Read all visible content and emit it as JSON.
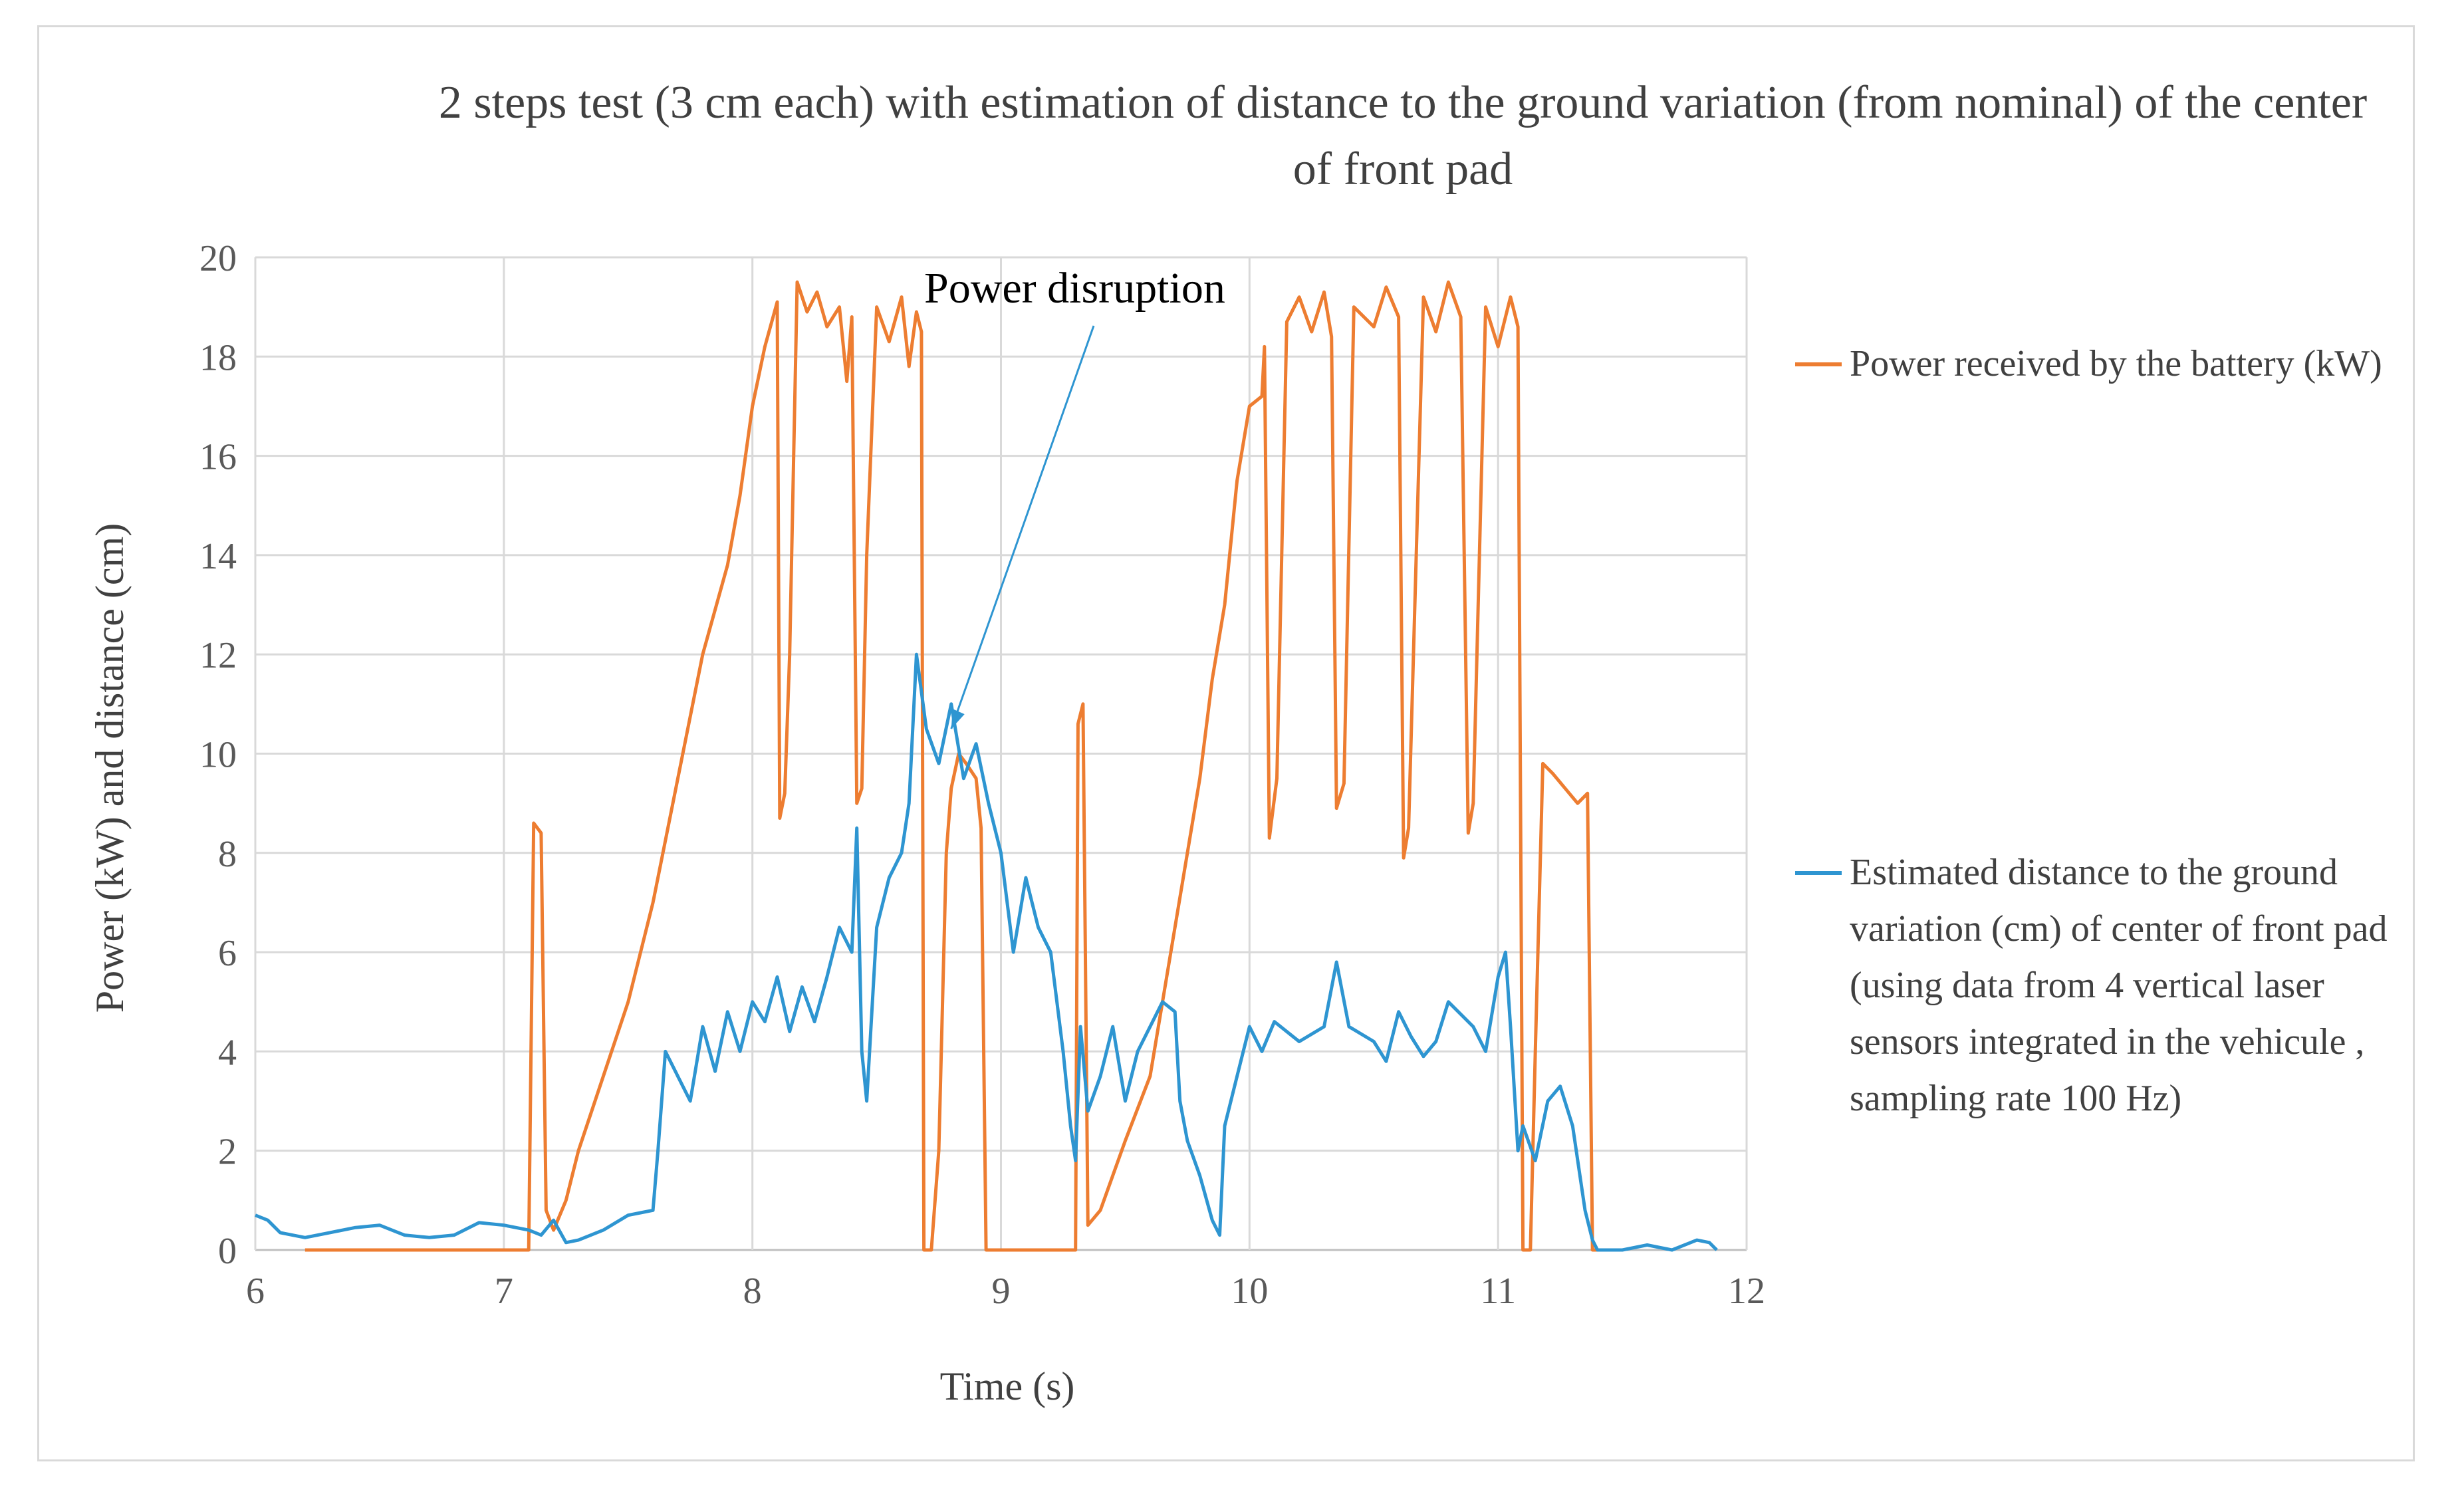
{
  "chart_data": {
    "type": "line",
    "title": "2 steps  test (3 cm each)  with estimation of distance to  the ground variation  (from nominal) of  the center of front pad",
    "xlabel": "Time (s)",
    "ylabel": "Power (kW) and distance  (cm)",
    "xlim": [
      6,
      12
    ],
    "ylim": [
      0,
      20
    ],
    "x_ticks": [
      "6",
      "7",
      "8",
      "9",
      "10",
      "11",
      "12"
    ],
    "y_ticks": [
      "0",
      "2",
      "4",
      "6",
      "8",
      "10",
      "12",
      "14",
      "16",
      "18",
      "20"
    ],
    "grid": true,
    "legend_position": "right",
    "annotation": {
      "text": "Power disruption",
      "x": 8.8,
      "y": 10.5
    },
    "series": [
      {
        "name": "Power received by the battery (kW)",
        "color": "#ED7D31",
        "points": [
          [
            6.2,
            0
          ],
          [
            7.1,
            0
          ],
          [
            7.12,
            8.6
          ],
          [
            7.15,
            8.4
          ],
          [
            7.17,
            0.8
          ],
          [
            7.2,
            0.4
          ],
          [
            7.25,
            1.0
          ],
          [
            7.3,
            2.0
          ],
          [
            7.4,
            3.5
          ],
          [
            7.5,
            5.0
          ],
          [
            7.6,
            7.0
          ],
          [
            7.7,
            9.5
          ],
          [
            7.8,
            12.0
          ],
          [
            7.9,
            13.8
          ],
          [
            7.95,
            15.2
          ],
          [
            8.0,
            17.0
          ],
          [
            8.05,
            18.2
          ],
          [
            8.1,
            19.1
          ],
          [
            8.11,
            8.7
          ],
          [
            8.13,
            9.2
          ],
          [
            8.15,
            12
          ],
          [
            8.18,
            19.5
          ],
          [
            8.22,
            18.9
          ],
          [
            8.26,
            19.3
          ],
          [
            8.3,
            18.6
          ],
          [
            8.35,
            19.0
          ],
          [
            8.38,
            17.5
          ],
          [
            8.4,
            18.8
          ],
          [
            8.42,
            9.0
          ],
          [
            8.44,
            9.3
          ],
          [
            8.46,
            14
          ],
          [
            8.5,
            19.0
          ],
          [
            8.55,
            18.3
          ],
          [
            8.6,
            19.2
          ],
          [
            8.63,
            17.8
          ],
          [
            8.66,
            18.9
          ],
          [
            8.68,
            18.5
          ],
          [
            8.69,
            0
          ],
          [
            8.72,
            0
          ],
          [
            8.75,
            2
          ],
          [
            8.78,
            8
          ],
          [
            8.8,
            9.3
          ],
          [
            8.83,
            10.0
          ],
          [
            8.86,
            9.8
          ],
          [
            8.9,
            9.5
          ],
          [
            8.92,
            8.5
          ],
          [
            8.94,
            0
          ],
          [
            9.05,
            0
          ],
          [
            9.3,
            0
          ],
          [
            9.31,
            10.6
          ],
          [
            9.33,
            11.0
          ],
          [
            9.35,
            0.5
          ],
          [
            9.4,
            0.8
          ],
          [
            9.5,
            2.2
          ],
          [
            9.6,
            3.5
          ],
          [
            9.7,
            6.5
          ],
          [
            9.8,
            9.5
          ],
          [
            9.85,
            11.5
          ],
          [
            9.9,
            13.0
          ],
          [
            9.95,
            15.5
          ],
          [
            10.0,
            17.0
          ],
          [
            10.05,
            17.2
          ],
          [
            10.06,
            18.2
          ],
          [
            10.08,
            8.3
          ],
          [
            10.11,
            9.5
          ],
          [
            10.15,
            18.7
          ],
          [
            10.2,
            19.2
          ],
          [
            10.25,
            18.5
          ],
          [
            10.3,
            19.3
          ],
          [
            10.33,
            18.4
          ],
          [
            10.35,
            8.9
          ],
          [
            10.38,
            9.4
          ],
          [
            10.42,
            19.0
          ],
          [
            10.5,
            18.6
          ],
          [
            10.55,
            19.4
          ],
          [
            10.6,
            18.8
          ],
          [
            10.62,
            7.9
          ],
          [
            10.64,
            8.5
          ],
          [
            10.7,
            19.2
          ],
          [
            10.75,
            18.5
          ],
          [
            10.8,
            19.5
          ],
          [
            10.85,
            18.8
          ],
          [
            10.88,
            8.4
          ],
          [
            10.9,
            9.0
          ],
          [
            10.95,
            19.0
          ],
          [
            11.0,
            18.2
          ],
          [
            11.05,
            19.2
          ],
          [
            11.08,
            18.6
          ],
          [
            11.1,
            0
          ],
          [
            11.13,
            0
          ],
          [
            11.15,
            4
          ],
          [
            11.18,
            9.8
          ],
          [
            11.22,
            9.6
          ],
          [
            11.27,
            9.3
          ],
          [
            11.32,
            9.0
          ],
          [
            11.36,
            9.2
          ],
          [
            11.38,
            0
          ],
          [
            11.45,
            0
          ]
        ]
      },
      {
        "name": "Estimated  distance to the ground variation (cm) of center of front pad (using data from 4 vertical laser sensors integrated in the vehicule , sampling rate 100 Hz)",
        "color": "#2E95D1",
        "points": [
          [
            6.0,
            0.7
          ],
          [
            6.05,
            0.6
          ],
          [
            6.1,
            0.35
          ],
          [
            6.2,
            0.25
          ],
          [
            6.3,
            0.35
          ],
          [
            6.4,
            0.45
          ],
          [
            6.5,
            0.5
          ],
          [
            6.6,
            0.3
          ],
          [
            6.7,
            0.25
          ],
          [
            6.8,
            0.3
          ],
          [
            6.9,
            0.55
          ],
          [
            7.0,
            0.5
          ],
          [
            7.1,
            0.4
          ],
          [
            7.15,
            0.3
          ],
          [
            7.2,
            0.6
          ],
          [
            7.25,
            0.15
          ],
          [
            7.3,
            0.2
          ],
          [
            7.4,
            0.4
          ],
          [
            7.5,
            0.7
          ],
          [
            7.55,
            0.75
          ],
          [
            7.6,
            0.8
          ],
          [
            7.62,
            2.0
          ],
          [
            7.65,
            4.0
          ],
          [
            7.7,
            3.5
          ],
          [
            7.75,
            3.0
          ],
          [
            7.8,
            4.5
          ],
          [
            7.85,
            3.6
          ],
          [
            7.9,
            4.8
          ],
          [
            7.95,
            4.0
          ],
          [
            8.0,
            5.0
          ],
          [
            8.05,
            4.6
          ],
          [
            8.1,
            5.5
          ],
          [
            8.15,
            4.4
          ],
          [
            8.2,
            5.3
          ],
          [
            8.25,
            4.6
          ],
          [
            8.3,
            5.5
          ],
          [
            8.35,
            6.5
          ],
          [
            8.4,
            6.0
          ],
          [
            8.42,
            8.5
          ],
          [
            8.44,
            4.0
          ],
          [
            8.46,
            3.0
          ],
          [
            8.5,
            6.5
          ],
          [
            8.55,
            7.5
          ],
          [
            8.6,
            8.0
          ],
          [
            8.63,
            9.0
          ],
          [
            8.66,
            12.0
          ],
          [
            8.7,
            10.5
          ],
          [
            8.75,
            9.8
          ],
          [
            8.8,
            11.0
          ],
          [
            8.85,
            9.5
          ],
          [
            8.9,
            10.2
          ],
          [
            8.95,
            9.0
          ],
          [
            9.0,
            8.0
          ],
          [
            9.05,
            6.0
          ],
          [
            9.1,
            7.5
          ],
          [
            9.15,
            6.5
          ],
          [
            9.2,
            6.0
          ],
          [
            9.25,
            4.0
          ],
          [
            9.28,
            2.5
          ],
          [
            9.3,
            1.8
          ],
          [
            9.32,
            4.5
          ],
          [
            9.35,
            2.8
          ],
          [
            9.4,
            3.5
          ],
          [
            9.45,
            4.5
          ],
          [
            9.5,
            3.0
          ],
          [
            9.55,
            4.0
          ],
          [
            9.6,
            4.5
          ],
          [
            9.65,
            5.0
          ],
          [
            9.7,
            4.8
          ],
          [
            9.72,
            3.0
          ],
          [
            9.75,
            2.2
          ],
          [
            9.8,
            1.5
          ],
          [
            9.85,
            0.6
          ],
          [
            9.88,
            0.3
          ],
          [
            9.9,
            2.5
          ],
          [
            9.95,
            3.5
          ],
          [
            10.0,
            4.5
          ],
          [
            10.05,
            4.0
          ],
          [
            10.1,
            4.6
          ],
          [
            10.2,
            4.2
          ],
          [
            10.3,
            4.5
          ],
          [
            10.35,
            5.8
          ],
          [
            10.4,
            4.5
          ],
          [
            10.5,
            4.2
          ],
          [
            10.55,
            3.8
          ],
          [
            10.6,
            4.8
          ],
          [
            10.65,
            4.3
          ],
          [
            10.7,
            3.9
          ],
          [
            10.75,
            4.2
          ],
          [
            10.8,
            5.0
          ],
          [
            10.9,
            4.5
          ],
          [
            10.95,
            4.0
          ],
          [
            11.0,
            5.5
          ],
          [
            11.03,
            6.0
          ],
          [
            11.05,
            4.5
          ],
          [
            11.08,
            2.0
          ],
          [
            11.1,
            2.5
          ],
          [
            11.15,
            1.8
          ],
          [
            11.2,
            3.0
          ],
          [
            11.25,
            3.3
          ],
          [
            11.3,
            2.5
          ],
          [
            11.35,
            0.8
          ],
          [
            11.38,
            0.2
          ],
          [
            11.4,
            0.0
          ],
          [
            11.45,
            0.0
          ],
          [
            11.5,
            0.0
          ],
          [
            11.6,
            0.1
          ],
          [
            11.7,
            0.0
          ],
          [
            11.8,
            0.2
          ],
          [
            11.85,
            0.15
          ],
          [
            11.88,
            0.0
          ]
        ]
      }
    ]
  }
}
